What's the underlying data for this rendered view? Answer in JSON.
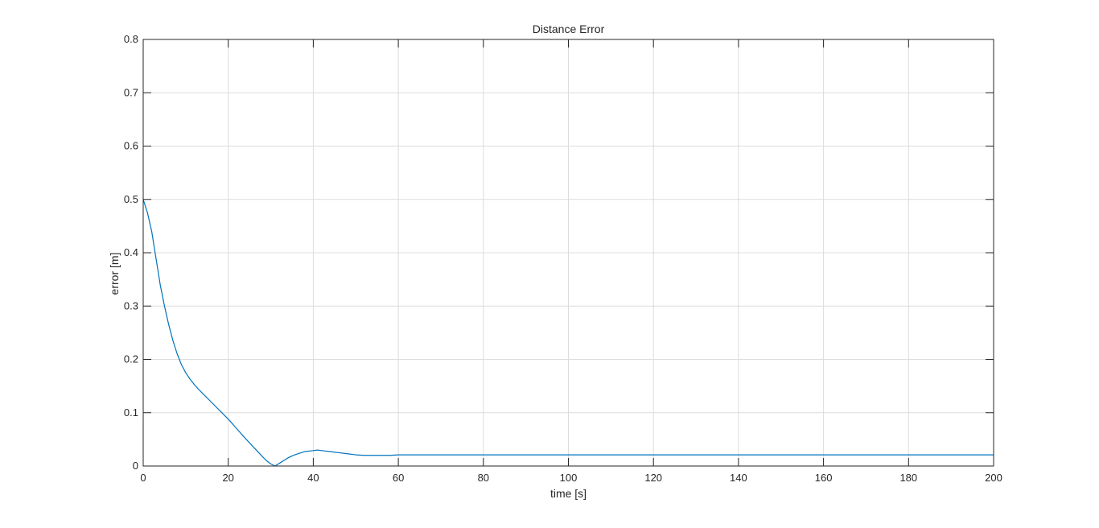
{
  "chart_data": {
    "type": "line",
    "title": "Distance Error",
    "xlabel": "time [s]",
    "ylabel": "error [m]",
    "xlim": [
      0,
      200
    ],
    "ylim": [
      0,
      0.8
    ],
    "xticks": [
      0,
      20,
      40,
      60,
      80,
      100,
      120,
      140,
      160,
      180,
      200
    ],
    "yticks": [
      0,
      0.1,
      0.2,
      0.3,
      0.4,
      0.5,
      0.6,
      0.7,
      0.8
    ],
    "xtick_labels": [
      "0",
      "20",
      "40",
      "60",
      "80",
      "100",
      "120",
      "140",
      "160",
      "180",
      "200"
    ],
    "ytick_labels": [
      "0",
      "0.1",
      "0.2",
      "0.3",
      "0.4",
      "0.5",
      "0.6",
      "0.7",
      "0.8"
    ],
    "grid": true,
    "legend": false,
    "line_color": "#0072BD",
    "series": [
      {
        "x": [
          0,
          1,
          2,
          3,
          4,
          5,
          6,
          7,
          8,
          9,
          10,
          11,
          12,
          13,
          14,
          15,
          16,
          18,
          20,
          22,
          24,
          26,
          28,
          29,
          30,
          31,
          32,
          33,
          34,
          35,
          36,
          38,
          40,
          41,
          42,
          44,
          46,
          48,
          50,
          52,
          55,
          58,
          60,
          70,
          80,
          100,
          120,
          140,
          160,
          180,
          200
        ],
        "y": [
          0.5,
          0.475,
          0.44,
          0.39,
          0.34,
          0.3,
          0.265,
          0.235,
          0.21,
          0.19,
          0.175,
          0.163,
          0.153,
          0.144,
          0.136,
          0.128,
          0.12,
          0.104,
          0.088,
          0.07,
          0.052,
          0.035,
          0.018,
          0.01,
          0.004,
          0.0,
          0.005,
          0.01,
          0.015,
          0.019,
          0.022,
          0.027,
          0.029,
          0.03,
          0.029,
          0.027,
          0.025,
          0.023,
          0.021,
          0.02,
          0.02,
          0.02,
          0.021,
          0.021,
          0.021,
          0.021,
          0.021,
          0.021,
          0.021,
          0.021,
          0.021
        ]
      }
    ]
  }
}
